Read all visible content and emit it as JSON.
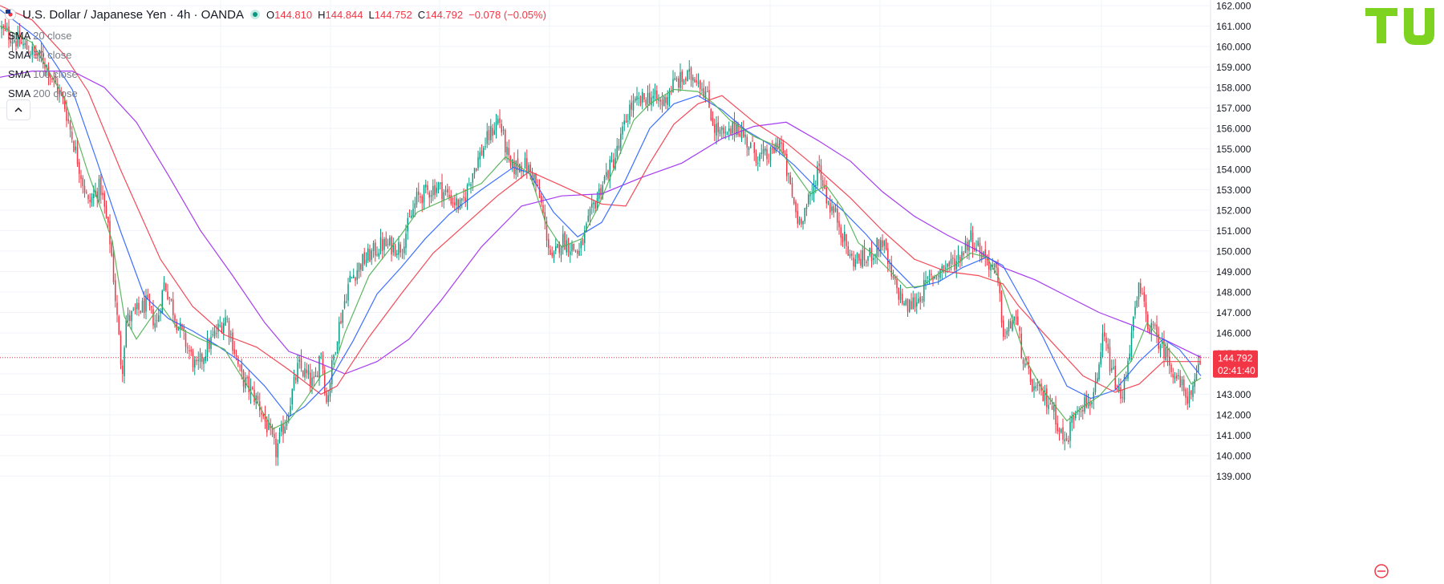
{
  "header": {
    "title": "U.S. Dollar / Japanese Yen · 4h · OANDA",
    "ohlc": [
      {
        "k": "O",
        "v": "144.810"
      },
      {
        "k": "H",
        "v": "144.844"
      },
      {
        "k": "L",
        "v": "144.752"
      },
      {
        "k": "C",
        "v": "144.792"
      },
      {
        "k": "",
        "v": "−0.078 (−0.05%)"
      }
    ]
  },
  "indicators": [
    {
      "name": "SMA",
      "params": "20 close"
    },
    {
      "name": "SMA",
      "params": "50 close"
    },
    {
      "name": "SMA",
      "params": "100 close"
    },
    {
      "name": "SMA",
      "params": "200 close"
    }
  ],
  "price_badge": {
    "price": "144.792",
    "countdown": "02:41:40"
  },
  "colors": {
    "up": "#089981",
    "down": "#f23645",
    "sma20": "#4caf50",
    "sma50": "#2962ff",
    "sma100": "#f23645",
    "sma200": "#9c27f0",
    "brand": "#7ed321"
  },
  "icons": {
    "symbol": "usd-jpy-flag-icon",
    "status": "market-status-dot-icon",
    "collapse": "chevron-up-icon",
    "watermark": "tv-watermark-icon"
  },
  "chart_data": {
    "type": "candlestick",
    "symbol": "USD/JPY",
    "timeframe": "4h",
    "ylim": [
      138.5,
      162
    ],
    "yticks": [
      "139.000",
      "140.000",
      "141.000",
      "142.000",
      "143.000",
      "144.000",
      "145.000",
      "146.000",
      "147.000",
      "148.000",
      "149.000",
      "150.000",
      "151.000",
      "152.000",
      "153.000",
      "154.000",
      "155.000",
      "156.000",
      "157.000",
      "158.000",
      "159.000",
      "160.000",
      "161.000",
      "162.000"
    ],
    "last_price": 144.792,
    "close_path": [
      [
        0,
        160.9
      ],
      [
        55,
        159.3
      ],
      [
        80,
        157.2
      ],
      [
        110,
        152.3
      ],
      [
        125,
        153.2
      ],
      [
        138,
        150.3
      ],
      [
        152,
        144.0
      ],
      [
        157,
        146.6
      ],
      [
        182,
        147.4
      ],
      [
        195,
        146.4
      ],
      [
        205,
        148.5
      ],
      [
        220,
        146.6
      ],
      [
        245,
        144.2
      ],
      [
        258,
        145.3
      ],
      [
        282,
        146.8
      ],
      [
        300,
        143.9
      ],
      [
        322,
        142.6
      ],
      [
        344,
        140.2
      ],
      [
        358,
        142.0
      ],
      [
        372,
        144.4
      ],
      [
        392,
        143.4
      ],
      [
        400,
        145.3
      ],
      [
        407,
        142.6
      ],
      [
        420,
        145.9
      ],
      [
        435,
        148.5
      ],
      [
        450,
        149.4
      ],
      [
        475,
        150.3
      ],
      [
        500,
        150.2
      ],
      [
        520,
        152.6
      ],
      [
        545,
        153.2
      ],
      [
        575,
        152.1
      ],
      [
        590,
        154.0
      ],
      [
        608,
        155.5
      ],
      [
        622,
        156.5
      ],
      [
        636,
        154.0
      ],
      [
        652,
        154.3
      ],
      [
        665,
        153.7
      ],
      [
        675,
        152.2
      ],
      [
        688,
        149.4
      ],
      [
        700,
        150.6
      ],
      [
        722,
        149.9
      ],
      [
        740,
        152.2
      ],
      [
        752,
        153.4
      ],
      [
        768,
        154.7
      ],
      [
        785,
        157.0
      ],
      [
        810,
        157.6
      ],
      [
        825,
        157.2
      ],
      [
        840,
        158.2
      ],
      [
        858,
        158.5
      ],
      [
        868,
        158.6
      ],
      [
        880,
        157.7
      ],
      [
        890,
        156.1
      ],
      [
        905,
        155.5
      ],
      [
        918,
        156.2
      ],
      [
        932,
        155.3
      ],
      [
        945,
        154.6
      ],
      [
        960,
        154.6
      ],
      [
        972,
        155.5
      ],
      [
        985,
        153.1
      ],
      [
        995,
        151.4
      ],
      [
        1012,
        152.7
      ],
      [
        1020,
        154.3
      ],
      [
        1032,
        152.4
      ],
      [
        1045,
        151.5
      ],
      [
        1060,
        149.6
      ],
      [
        1080,
        149.6
      ],
      [
        1100,
        150.5
      ],
      [
        1112,
        148.6
      ],
      [
        1130,
        147.2
      ],
      [
        1145,
        147.7
      ],
      [
        1158,
        148.6
      ],
      [
        1175,
        149.2
      ],
      [
        1192,
        149.5
      ],
      [
        1210,
        150.7
      ],
      [
        1230,
        149.6
      ],
      [
        1242,
        148.9
      ],
      [
        1252,
        145.7
      ],
      [
        1265,
        146.9
      ],
      [
        1278,
        144.2
      ],
      [
        1290,
        143.2
      ],
      [
        1310,
        142.6
      ],
      [
        1328,
        140.5
      ],
      [
        1342,
        142.5
      ],
      [
        1358,
        142.6
      ],
      [
        1368,
        143.4
      ],
      [
        1375,
        145.9
      ],
      [
        1385,
        144.3
      ],
      [
        1398,
        142.6
      ],
      [
        1408,
        145.3
      ],
      [
        1420,
        148.2
      ],
      [
        1432,
        146.4
      ],
      [
        1445,
        145.6
      ],
      [
        1458,
        144.6
      ],
      [
        1470,
        143.5
      ],
      [
        1485,
        142.7
      ],
      [
        1497,
        144.8
      ]
    ],
    "sma_paths": {
      "sma20": [
        [
          0,
          161
        ],
        [
          40,
          160.2
        ],
        [
          80,
          157.5
        ],
        [
          110,
          153.8
        ],
        [
          140,
          150.5
        ],
        [
          155,
          146.8
        ],
        [
          170,
          145.7
        ],
        [
          200,
          147.4
        ],
        [
          220,
          146.3
        ],
        [
          250,
          145.7
        ],
        [
          280,
          145.2
        ],
        [
          310,
          143.3
        ],
        [
          340,
          141.3
        ],
        [
          360,
          141.7
        ],
        [
          380,
          142.7
        ],
        [
          400,
          143.9
        ],
        [
          415,
          144.2
        ],
        [
          430,
          146.0
        ],
        [
          460,
          148.8
        ],
        [
          500,
          150.8
        ],
        [
          520,
          151.9
        ],
        [
          560,
          152.6
        ],
        [
          600,
          153.3
        ],
        [
          630,
          154.6
        ],
        [
          660,
          153.8
        ],
        [
          680,
          151.4
        ],
        [
          700,
          150.2
        ],
        [
          725,
          150.6
        ],
        [
          745,
          152.1
        ],
        [
          770,
          154.5
        ],
        [
          790,
          156.4
        ],
        [
          810,
          157.2
        ],
        [
          840,
          157.9
        ],
        [
          870,
          157.8
        ],
        [
          890,
          157.2
        ],
        [
          910,
          156.4
        ],
        [
          940,
          155.6
        ],
        [
          970,
          155.1
        ],
        [
          990,
          153.9
        ],
        [
          1010,
          152.8
        ],
        [
          1030,
          153.2
        ],
        [
          1050,
          152.1
        ],
        [
          1070,
          150.4
        ],
        [
          1090,
          149.8
        ],
        [
          1110,
          149.0
        ],
        [
          1130,
          148.2
        ],
        [
          1150,
          148.3
        ],
        [
          1170,
          148.9
        ],
        [
          1190,
          149.3
        ],
        [
          1210,
          149.9
        ],
        [
          1230,
          149.7
        ],
        [
          1245,
          148.7
        ],
        [
          1260,
          146.9
        ],
        [
          1280,
          144.6
        ],
        [
          1300,
          143.2
        ],
        [
          1330,
          141.7
        ],
        [
          1350,
          142.4
        ],
        [
          1370,
          142.9
        ],
        [
          1390,
          143.8
        ],
        [
          1410,
          144.6
        ],
        [
          1430,
          146.5
        ],
        [
          1450,
          145.5
        ],
        [
          1470,
          144.6
        ],
        [
          1485,
          143.5
        ],
        [
          1497,
          143.8
        ]
      ],
      "sma50": [
        [
          0,
          161.8
        ],
        [
          50,
          160.3
        ],
        [
          90,
          157.9
        ],
        [
          120,
          154.5
        ],
        [
          150,
          151.0
        ],
        [
          180,
          147.8
        ],
        [
          210,
          146.7
        ],
        [
          240,
          146.1
        ],
        [
          270,
          145.4
        ],
        [
          300,
          144.6
        ],
        [
          330,
          143.4
        ],
        [
          360,
          141.9
        ],
        [
          380,
          142.4
        ],
        [
          410,
          143.6
        ],
        [
          440,
          145.6
        ],
        [
          470,
          147.9
        ],
        [
          500,
          149.2
        ],
        [
          530,
          150.6
        ],
        [
          560,
          151.8
        ],
        [
          600,
          153.0
        ],
        [
          640,
          154.1
        ],
        [
          660,
          153.8
        ],
        [
          690,
          151.9
        ],
        [
          720,
          150.7
        ],
        [
          750,
          151.4
        ],
        [
          780,
          153.5
        ],
        [
          810,
          156.0
        ],
        [
          840,
          157.2
        ],
        [
          870,
          157.6
        ],
        [
          900,
          156.9
        ],
        [
          930,
          155.9
        ],
        [
          960,
          155.2
        ],
        [
          990,
          154.2
        ],
        [
          1020,
          153.0
        ],
        [
          1050,
          152.0
        ],
        [
          1080,
          150.8
        ],
        [
          1110,
          149.4
        ],
        [
          1140,
          148.2
        ],
        [
          1170,
          148.5
        ],
        [
          1200,
          149.2
        ],
        [
          1230,
          149.7
        ],
        [
          1250,
          149.3
        ],
        [
          1270,
          147.9
        ],
        [
          1300,
          145.8
        ],
        [
          1330,
          143.4
        ],
        [
          1360,
          142.8
        ],
        [
          1390,
          143.2
        ],
        [
          1420,
          144.6
        ],
        [
          1450,
          145.7
        ],
        [
          1470,
          145.2
        ],
        [
          1497,
          143.9
        ]
      ],
      "sma100": [
        [
          0,
          162
        ],
        [
          40,
          161.3
        ],
        [
          80,
          159.6
        ],
        [
          110,
          157.8
        ],
        [
          150,
          154.0
        ],
        [
          200,
          149.6
        ],
        [
          240,
          147.3
        ],
        [
          280,
          145.9
        ],
        [
          320,
          145.3
        ],
        [
          360,
          144.2
        ],
        [
          400,
          143.0
        ],
        [
          420,
          143.4
        ],
        [
          460,
          145.8
        ],
        [
          500,
          147.9
        ],
        [
          540,
          149.9
        ],
        [
          580,
          151.3
        ],
        [
          620,
          152.7
        ],
        [
          660,
          153.9
        ],
        [
          700,
          153.2
        ],
        [
          750,
          152.3
        ],
        [
          780,
          152.2
        ],
        [
          810,
          154.3
        ],
        [
          840,
          156.2
        ],
        [
          870,
          157.2
        ],
        [
          900,
          157.6
        ],
        [
          940,
          156.3
        ],
        [
          980,
          155.3
        ],
        [
          1020,
          154.0
        ],
        [
          1060,
          152.6
        ],
        [
          1100,
          151.0
        ],
        [
          1140,
          149.6
        ],
        [
          1180,
          149.0
        ],
        [
          1220,
          148.8
        ],
        [
          1250,
          148.4
        ],
        [
          1270,
          147.3
        ],
        [
          1310,
          145.6
        ],
        [
          1350,
          143.9
        ],
        [
          1390,
          143.1
        ],
        [
          1420,
          143.5
        ],
        [
          1450,
          144.6
        ],
        [
          1497,
          144.6
        ]
      ],
      "sma200": [
        [
          0,
          158.5
        ],
        [
          40,
          158.8
        ],
        [
          90,
          158.8
        ],
        [
          130,
          158.0
        ],
        [
          170,
          156.3
        ],
        [
          210,
          153.7
        ],
        [
          250,
          151.0
        ],
        [
          290,
          148.8
        ],
        [
          330,
          146.5
        ],
        [
          360,
          145.1
        ],
        [
          400,
          144.5
        ],
        [
          430,
          144.0
        ],
        [
          470,
          144.6
        ],
        [
          510,
          145.7
        ],
        [
          550,
          147.6
        ],
        [
          600,
          150.2
        ],
        [
          650,
          152.2
        ],
        [
          700,
          152.7
        ],
        [
          750,
          152.8
        ],
        [
          800,
          153.6
        ],
        [
          850,
          154.3
        ],
        [
          900,
          155.5
        ],
        [
          940,
          156.1
        ],
        [
          980,
          156.3
        ],
        [
          1020,
          155.4
        ],
        [
          1060,
          154.4
        ],
        [
          1100,
          152.9
        ],
        [
          1140,
          151.7
        ],
        [
          1180,
          150.8
        ],
        [
          1220,
          150.0
        ],
        [
          1250,
          149.2
        ],
        [
          1290,
          148.6
        ],
        [
          1330,
          147.8
        ],
        [
          1370,
          147.0
        ],
        [
          1410,
          146.4
        ],
        [
          1450,
          145.7
        ],
        [
          1497,
          144.8
        ]
      ]
    }
  }
}
